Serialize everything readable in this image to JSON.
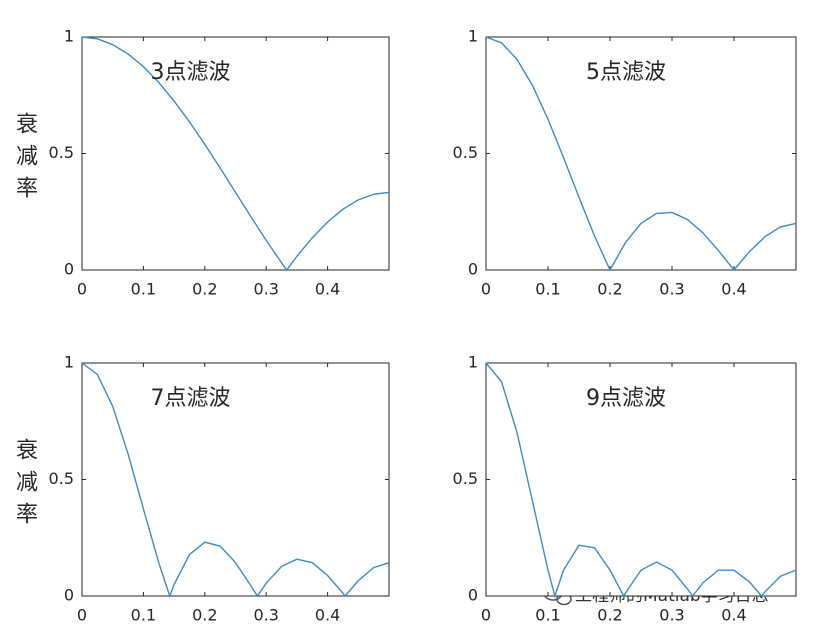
{
  "chart_data": [
    {
      "type": "line",
      "title": "3点滤波",
      "ylabel": "衰减率",
      "color": "#3a8cc8",
      "x": [
        0,
        0.025,
        0.05,
        0.075,
        0.1,
        0.125,
        0.15,
        0.175,
        0.2,
        0.225,
        0.25,
        0.275,
        0.3,
        0.325,
        0.3333,
        0.35,
        0.375,
        0.4,
        0.425,
        0.45,
        0.475,
        0.5
      ],
      "values": [
        1,
        0.992,
        0.967,
        0.927,
        0.873,
        0.805,
        0.725,
        0.636,
        0.539,
        0.438,
        0.333,
        0.229,
        0.127,
        0.031,
        0,
        0.059,
        0.138,
        0.206,
        0.261,
        0.301,
        0.325,
        0.333
      ],
      "xlim": [
        0,
        0.5
      ],
      "ylim": [
        0,
        1
      ],
      "xticks": [
        0,
        0.1,
        0.2,
        0.3,
        0.4
      ],
      "yticks": [
        0,
        0.5,
        1
      ]
    },
    {
      "type": "line",
      "title": "5点滤波",
      "color": "#3a8cc8",
      "x": [
        0,
        0.025,
        0.05,
        0.075,
        0.1,
        0.125,
        0.15,
        0.175,
        0.2,
        0.225,
        0.25,
        0.275,
        0.3,
        0.325,
        0.35,
        0.375,
        0.4,
        0.425,
        0.45,
        0.475,
        0.5
      ],
      "values": [
        1,
        0.975,
        0.904,
        0.792,
        0.647,
        0.483,
        0.312,
        0.146,
        0,
        0.118,
        0.2,
        0.243,
        0.247,
        0.217,
        0.159,
        0.083,
        0,
        0.079,
        0.143,
        0.185,
        0.2
      ],
      "xlim": [
        0,
        0.5
      ],
      "ylim": [
        0,
        1
      ],
      "xticks": [
        0,
        0.1,
        0.2,
        0.3,
        0.4
      ],
      "yticks": [
        0,
        0.5,
        1
      ]
    },
    {
      "type": "line",
      "title": "7点滤波",
      "ylabel": "衰减率",
      "color": "#3a8cc8",
      "x": [
        0,
        0.025,
        0.05,
        0.075,
        0.1,
        0.125,
        0.1429,
        0.15,
        0.175,
        0.2,
        0.225,
        0.25,
        0.275,
        0.2857,
        0.3,
        0.325,
        0.35,
        0.375,
        0.4,
        0.425,
        0.4286,
        0.45,
        0.475,
        0.5
      ],
      "values": [
        1,
        0.951,
        0.814,
        0.61,
        0.374,
        0.143,
        0,
        0.049,
        0.178,
        0.231,
        0.214,
        0.143,
        0.044,
        0,
        0.055,
        0.127,
        0.158,
        0.143,
        0.088,
        0.012,
        0,
        0.066,
        0.122,
        0.143
      ],
      "xlim": [
        0,
        0.5
      ],
      "ylim": [
        0,
        1
      ],
      "xticks": [
        0,
        0.1,
        0.2,
        0.3,
        0.4
      ],
      "yticks": [
        0,
        0.5,
        1
      ]
    },
    {
      "type": "line",
      "title": "9点滤波",
      "color": "#3a8cc8",
      "x": [
        0,
        0.025,
        0.05,
        0.075,
        0.1,
        0.1111,
        0.125,
        0.15,
        0.175,
        0.2,
        0.2222,
        0.225,
        0.25,
        0.275,
        0.3,
        0.325,
        0.3333,
        0.35,
        0.375,
        0.4,
        0.425,
        0.4444,
        0.45,
        0.475,
        0.5
      ],
      "values": [
        1,
        0.92,
        0.702,
        0.406,
        0.111,
        0,
        0.111,
        0.218,
        0.207,
        0.111,
        0,
        0.013,
        0.111,
        0.146,
        0.111,
        0.03,
        0,
        0.057,
        0.111,
        0.111,
        0.06,
        0,
        0.018,
        0.085,
        0.111
      ],
      "xlim": [
        0,
        0.5
      ],
      "ylim": [
        0,
        1
      ],
      "xticks": [
        0,
        0.1,
        0.2,
        0.3,
        0.4
      ],
      "yticks": [
        0,
        0.5,
        1
      ]
    }
  ],
  "watermark": "工程师的Matlab学习日志"
}
